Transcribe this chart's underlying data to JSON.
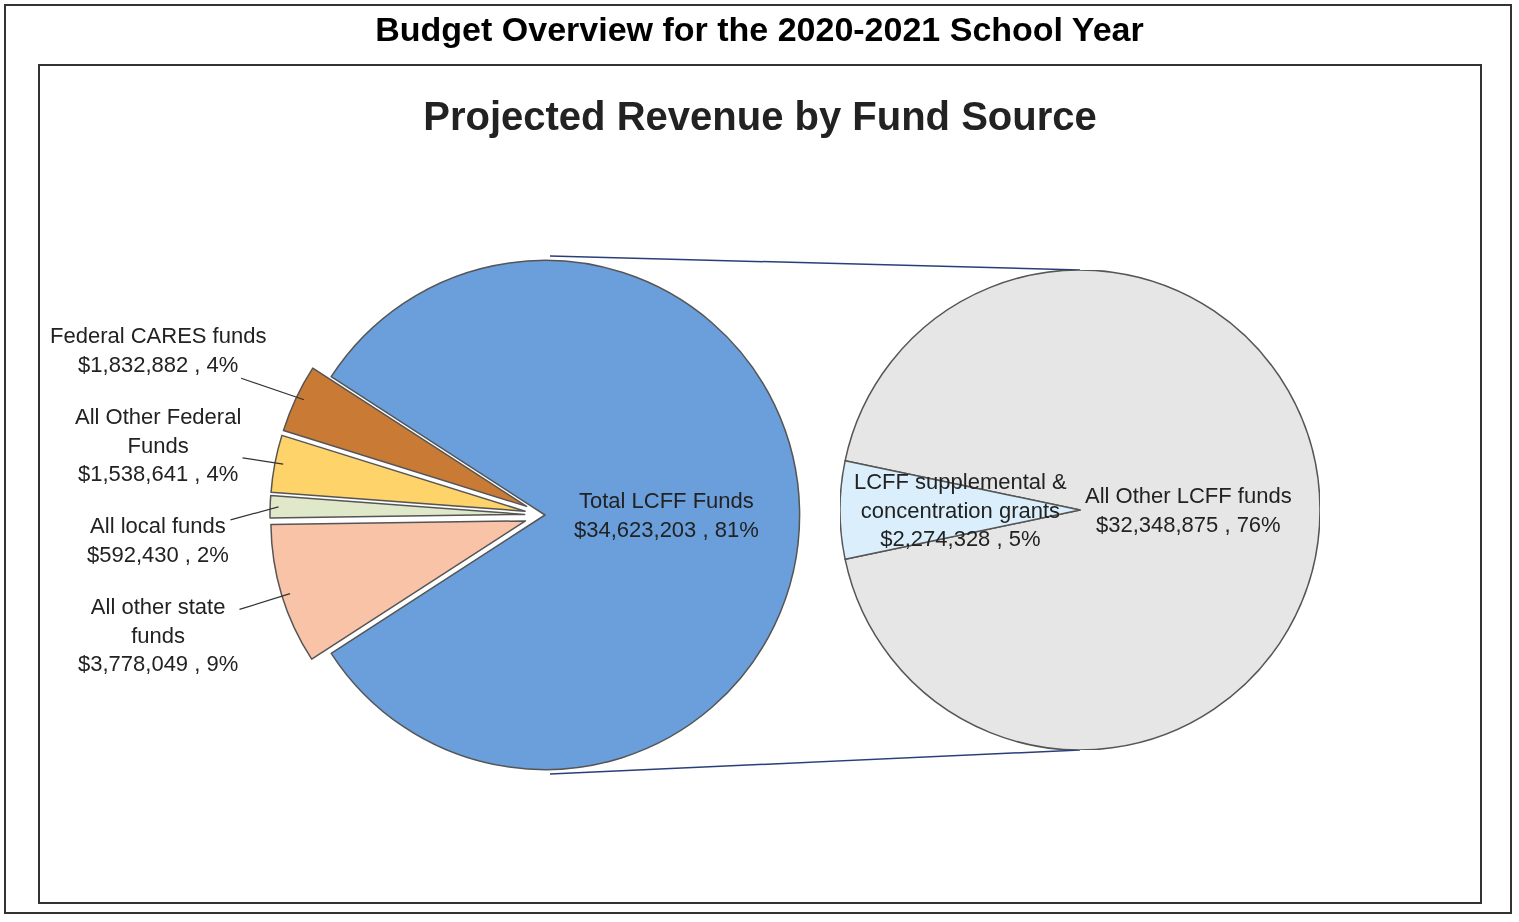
{
  "chart_data": [
    {
      "type": "pie",
      "title": "Budget Overview for the 2020-2021 School Year",
      "subtitle": "Projected Revenue by Fund Source",
      "categories": [
        "Federal CARES funds",
        "All Other Federal Funds",
        "All local funds",
        "All other state funds",
        "Total LCFF Funds"
      ],
      "values": [
        1832882,
        1538641,
        592430,
        3778049,
        34623203
      ],
      "value_labels": [
        "$1,832,882 , 4%",
        "$1,538,641 , 4%",
        "$592,430 , 2%",
        "$3,778,049 , 9%",
        "$34,623,203 , 81%"
      ],
      "colors": [
        "#c97a35",
        "#fdd36a",
        "#dfe8c8",
        "#f9c3a8",
        "#6a9fdc"
      ],
      "legend": false
    },
    {
      "type": "pie",
      "categories": [
        "All Other LCFF funds",
        "LCFF supplemental & concentration grants"
      ],
      "values": [
        32348875,
        2274328
      ],
      "value_labels": [
        "$32,348,875 , 76%",
        "$2,274,328 , 5%"
      ],
      "colors": [
        "#e6e6e6",
        "#dbeefc"
      ],
      "legend": false
    }
  ]
}
